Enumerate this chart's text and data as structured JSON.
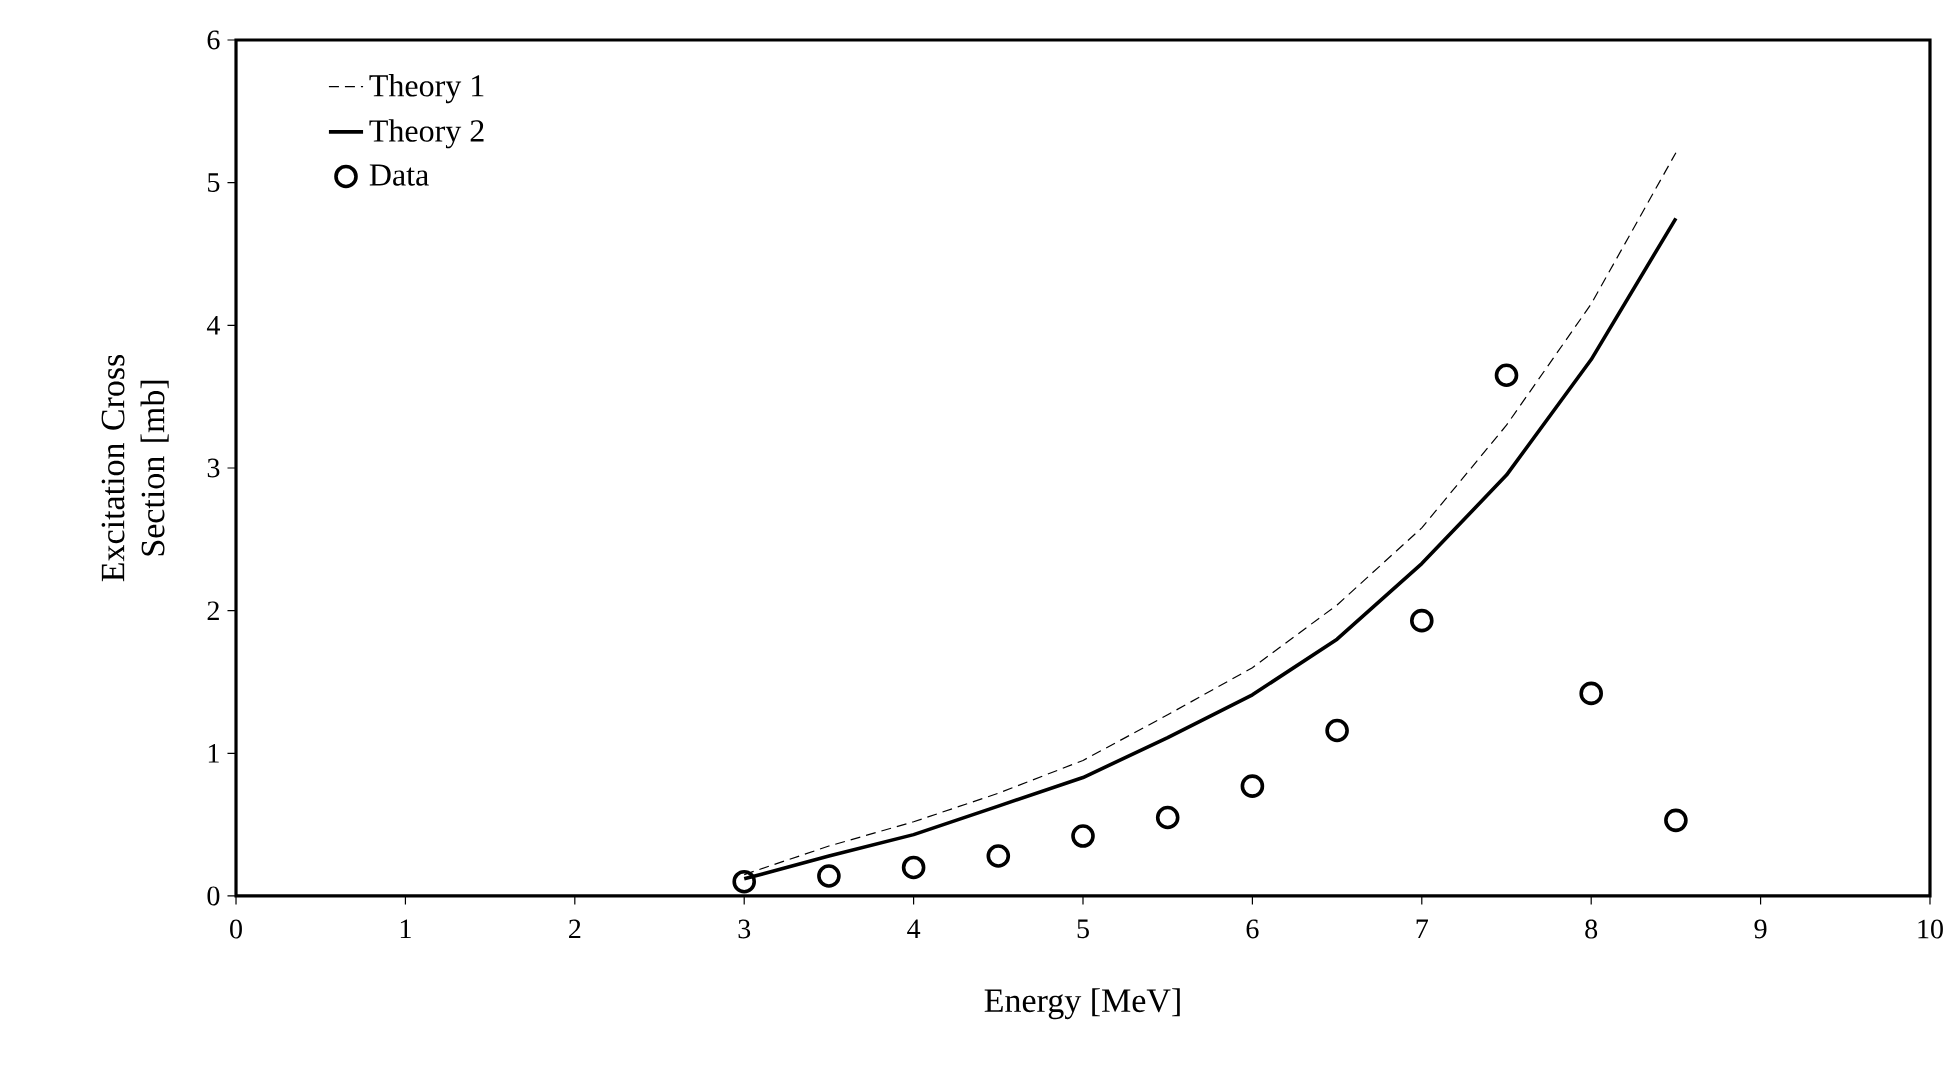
{
  "chart_data": {
    "type": "line",
    "xlabel": "Energy [MeV]",
    "ylabel": "Excitation Cross Section [mb]",
    "x": [
      3,
      3.5,
      4,
      4.5,
      5,
      5.5,
      6,
      6.5,
      7,
      7.5,
      8,
      8.5
    ],
    "series": [
      {
        "name": "Theory 1",
        "line_style": "dashed",
        "color": "#000000",
        "values": [
          0.15,
          0.35,
          0.52,
          0.72,
          0.95,
          1.27,
          1.6,
          2.04,
          2.58,
          3.3,
          4.15,
          5.21
        ]
      },
      {
        "name": "Theory 2",
        "line_style": "solid",
        "color": "#000000",
        "values": [
          0.12,
          0.28,
          0.43,
          0.63,
          0.83,
          1.11,
          1.41,
          1.8,
          2.33,
          2.95,
          3.76,
          4.75
        ]
      },
      {
        "name": "Data",
        "type": "scatter",
        "marker": "circle",
        "color": "#000000",
        "values": [
          0.1,
          0.14,
          0.2,
          0.28,
          0.42,
          0.55,
          0.77,
          1.16,
          1.93,
          3.65,
          1.42,
          0.53
        ]
      }
    ],
    "xlim": [
      0,
      10
    ],
    "ylim": [
      0,
      6
    ],
    "xticks": [
      0,
      1,
      2,
      3,
      4,
      5,
      6,
      7,
      8,
      9,
      10
    ],
    "yticks": [
      0,
      1,
      2,
      3,
      4,
      5,
      6
    ],
    "grid": false,
    "legend": "top left"
  }
}
